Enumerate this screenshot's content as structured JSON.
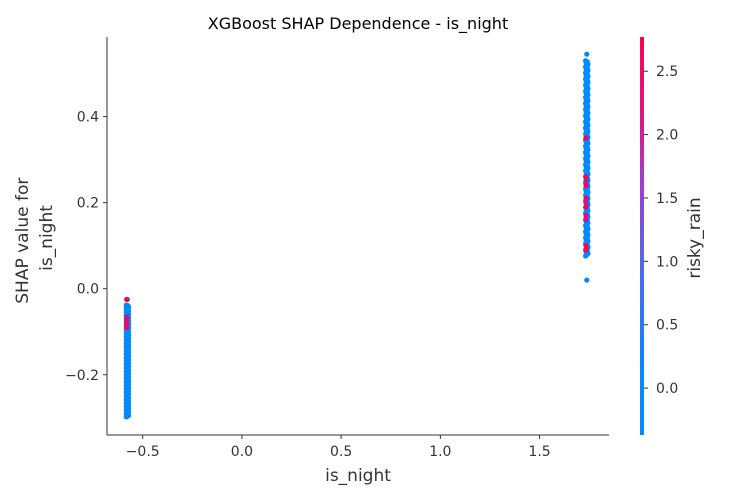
{
  "chart_data": {
    "type": "scatter",
    "title": "XGBoost SHAP Dependence - is_night",
    "xlabel": "is_night",
    "ylabel": "SHAP value for\nis_night",
    "xlim": [
      -0.68,
      1.85
    ],
    "ylim": [
      -0.34,
      0.585
    ],
    "xticks": [
      -0.5,
      0.0,
      0.5,
      1.0,
      1.5
    ],
    "xtick_labels": [
      "−0.5",
      "0.0",
      "0.5",
      "1.0",
      "1.5"
    ],
    "yticks": [
      -0.2,
      0.0,
      0.2,
      0.4
    ],
    "ytick_labels": [
      "−0.2",
      "0.0",
      "0.2",
      "0.4"
    ],
    "grid": false,
    "colorbar": {
      "label": "risky_rain",
      "range": [
        -0.37,
        2.77
      ],
      "ticks": [
        0.0,
        0.5,
        1.0,
        1.5,
        2.0,
        2.5
      ],
      "tick_labels": [
        "0.0",
        "0.5",
        "1.0",
        "1.5",
        "2.0",
        "2.5"
      ],
      "colors": [
        "#008afb",
        "#7d4ee0",
        "#ff0052"
      ]
    },
    "clusters": [
      {
        "x": -0.577,
        "y_range": [
          -0.298,
          -0.038
        ],
        "outliers": [
          -0.025
        ],
        "high_color_points": [
          -0.07,
          -0.075,
          -0.08,
          -0.085,
          -0.09,
          -0.065,
          -0.025
        ],
        "colors_low": "#008afb",
        "colors_high": "#ff0052"
      },
      {
        "x": 1.738,
        "y_range": [
          0.076,
          0.53
        ],
        "outliers": [
          0.02,
          0.545
        ],
        "high_color_points": [
          0.35,
          0.26,
          0.25,
          0.24,
          0.21,
          0.2,
          0.19,
          0.17,
          0.16,
          0.1,
          0.09
        ],
        "colors_low": "#008afb",
        "colors_high": "#ff0052"
      }
    ]
  }
}
